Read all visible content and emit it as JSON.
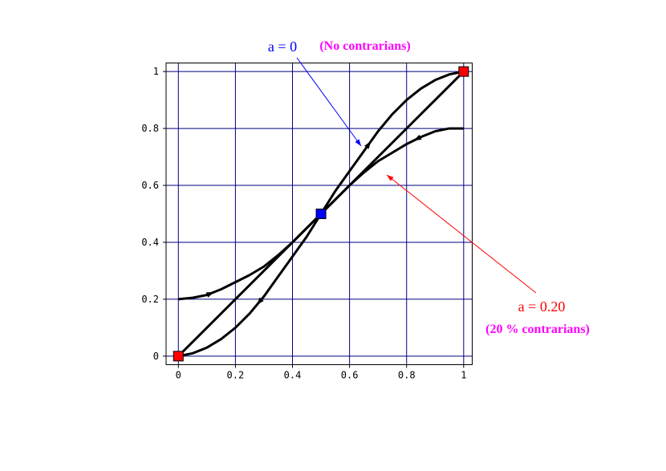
{
  "chart_data": {
    "type": "line",
    "xlim": [
      -0.043,
      1.03
    ],
    "ylim": [
      -0.03,
      1.03
    ],
    "xticks": [
      0,
      0.2,
      0.4,
      0.6,
      0.8,
      1
    ],
    "yticks": [
      0,
      0.2,
      0.4,
      0.6,
      0.8,
      1
    ],
    "grid": true,
    "grid_color": "#000080",
    "series": [
      {
        "color": "#000000",
        "x": [
          0,
          0.05,
          0.1,
          0.15,
          0.2,
          0.25,
          0.3,
          0.35,
          0.4,
          0.45,
          0.5,
          0.55,
          0.6,
          0.65,
          0.7,
          0.75,
          0.8,
          0.85,
          0.9,
          0.95,
          1
        ],
        "values": [
          0,
          0.01,
          0.03,
          0.06,
          0.1,
          0.15,
          0.21,
          0.28,
          0.35,
          0.42,
          0.5,
          0.58,
          0.65,
          0.72,
          0.79,
          0.85,
          0.9,
          0.94,
          0.97,
          0.99,
          1
        ]
      },
      {
        "color": "#000000",
        "x": [
          0,
          0.5,
          1
        ],
        "values": [
          0,
          0.5,
          1
        ]
      },
      {
        "color": "#000000",
        "x": [
          0,
          0.05,
          0.1,
          0.15,
          0.2,
          0.25,
          0.3,
          0.35,
          0.4,
          0.45,
          0.5,
          0.55,
          0.6,
          0.65,
          0.7,
          0.75,
          0.8,
          0.85,
          0.9,
          0.95,
          1
        ],
        "values": [
          0.2,
          0.205,
          0.215,
          0.235,
          0.26,
          0.285,
          0.315,
          0.355,
          0.4,
          0.45,
          0.5,
          0.55,
          0.6,
          0.645,
          0.685,
          0.715,
          0.745,
          0.77,
          0.79,
          0.8,
          0.8
        ]
      }
    ],
    "markers": [
      {
        "x": 0,
        "y": 0,
        "color": "#ff0000"
      },
      {
        "x": 1,
        "y": 1,
        "color": "#ff0000"
      },
      {
        "x": 0.5,
        "y": 0.5,
        "color": "#0000ff"
      }
    ],
    "annotations": [
      {
        "text": "a = 0",
        "color": "#0000ff"
      },
      {
        "text": "(No contrarians)",
        "color": "#ff00ff"
      },
      {
        "text": "a = 0.20",
        "color": "#ff0000"
      },
      {
        "text": "(20 % contrarians)",
        "color": "#ff00ff"
      }
    ]
  }
}
